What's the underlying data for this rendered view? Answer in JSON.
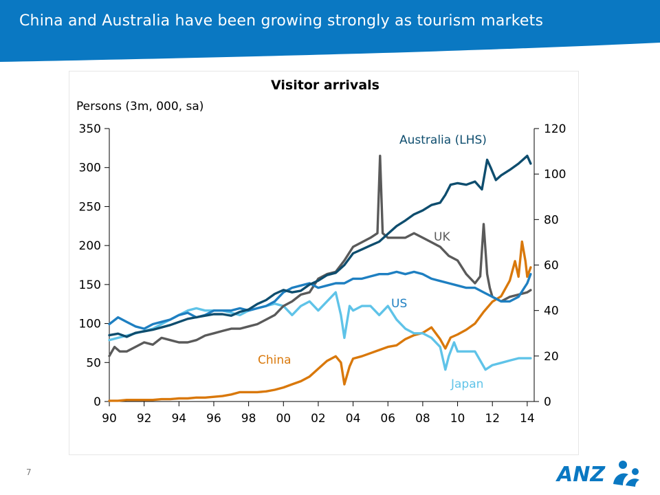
{
  "slide": {
    "title": "China and Australia have been growing strongly as tourism markets",
    "page_number": "7",
    "logo_text": "ANZ"
  },
  "colors": {
    "banner": "#0a78c2",
    "australia": "#0e4d6e",
    "uk": "#5a5a5a",
    "us": "#1e7fc1",
    "japan": "#5fc3e8",
    "china": "#d9780b"
  },
  "chart_data": {
    "type": "line",
    "title": "Visitor arrivals",
    "ylabel_left": "Persons (3m, 000, sa)",
    "x_tick_labels": [
      "90",
      "92",
      "94",
      "96",
      "98",
      "00",
      "02",
      "04",
      "06",
      "08",
      "10",
      "12",
      "14"
    ],
    "x_tick_years": [
      1990,
      1992,
      1994,
      1996,
      1998,
      2000,
      2002,
      2004,
      2006,
      2008,
      2010,
      2012,
      2014
    ],
    "xlim": [
      1990,
      2014.4
    ],
    "y_left": {
      "ticks": [
        "0",
        "50",
        "100",
        "150",
        "200",
        "250",
        "300",
        "350"
      ],
      "lim": [
        0,
        350
      ]
    },
    "y_right": {
      "ticks": [
        "0",
        "20",
        "40",
        "60",
        "80",
        "100",
        "120"
      ],
      "lim": [
        0,
        120
      ]
    },
    "series": [
      {
        "name": "Australia (LHS)",
        "axis": "left",
        "color_key": "australia",
        "x": [
          1990,
          1990.5,
          1991,
          1991.5,
          1992,
          1992.5,
          1993,
          1993.5,
          1994,
          1994.5,
          1995,
          1995.5,
          1996,
          1996.5,
          1997,
          1997.5,
          1998,
          1998.5,
          1999,
          1999.5,
          2000,
          2000.5,
          2001,
          2001.5,
          2002,
          2002.5,
          2003,
          2003.5,
          2004,
          2004.5,
          2005,
          2005.5,
          2006,
          2006.5,
          2007,
          2007.5,
          2008,
          2008.5,
          2009,
          2009.3,
          2009.6,
          2010,
          2010.5,
          2011,
          2011.4,
          2011.7,
          2011.9,
          2012.2,
          2012.5,
          2013,
          2013.5,
          2014,
          2014.2
        ],
        "y": [
          85,
          87,
          83,
          88,
          90,
          92,
          95,
          98,
          102,
          106,
          108,
          110,
          112,
          112,
          110,
          115,
          118,
          125,
          130,
          138,
          143,
          140,
          142,
          150,
          155,
          162,
          165,
          175,
          190,
          195,
          200,
          205,
          215,
          225,
          232,
          240,
          245,
          252,
          255,
          265,
          278,
          280,
          278,
          282,
          272,
          310,
          300,
          284,
          290,
          297,
          305,
          315,
          305
        ]
      },
      {
        "name": "UK",
        "axis": "right",
        "color_key": "uk",
        "x": [
          1990,
          1990.3,
          1990.6,
          1991,
          1991.5,
          1992,
          1992.5,
          1993,
          1993.5,
          1994,
          1994.5,
          1995,
          1995.5,
          1996,
          1996.5,
          1997,
          1997.5,
          1998,
          1998.5,
          1999,
          1999.5,
          2000,
          2000.5,
          2001,
          2001.5,
          2002,
          2002.5,
          2003,
          2003.5,
          2004,
          2004.5,
          2005,
          2005.4,
          2005.55,
          2005.7,
          2005.85,
          2006,
          2006.5,
          2007,
          2007.5,
          2008,
          2008.5,
          2009,
          2009.5,
          2010,
          2010.5,
          2011,
          2011.3,
          2011.5,
          2011.7,
          2011.85,
          2012,
          2012.5,
          2013,
          2013.5,
          2014,
          2014.2
        ],
        "y": [
          20,
          24,
          22,
          22,
          24,
          26,
          25,
          28,
          27,
          26,
          26,
          27,
          29,
          30,
          31,
          32,
          32,
          33,
          34,
          36,
          38,
          42,
          44,
          47,
          48,
          54,
          56,
          57,
          62,
          68,
          70,
          72,
          74,
          108,
          74,
          73,
          72,
          72,
          72,
          74,
          72,
          70,
          68,
          64,
          62,
          56,
          52,
          55,
          78,
          56,
          50,
          46,
          44,
          46,
          47,
          48,
          49
        ]
      },
      {
        "name": "US",
        "axis": "right",
        "color_key": "us",
        "x": [
          1990,
          1990.5,
          1991,
          1991.5,
          1992,
          1992.5,
          1993,
          1993.5,
          1994,
          1994.5,
          1995,
          1995.5,
          1996,
          1996.5,
          1997,
          1997.5,
          1998,
          1998.5,
          1999,
          1999.5,
          2000,
          2000.5,
          2001,
          2001.5,
          2002,
          2002.5,
          2003,
          2003.5,
          2004,
          2004.5,
          2005,
          2005.5,
          2006,
          2006.5,
          2007,
          2007.5,
          2008,
          2008.5,
          2009,
          2009.5,
          2010,
          2010.5,
          2011,
          2011.5,
          2012,
          2012.5,
          2013,
          2013.5,
          2014,
          2014.2
        ],
        "y": [
          34,
          37,
          35,
          33,
          32,
          34,
          35,
          36,
          38,
          39,
          37,
          38,
          40,
          40,
          40,
          41,
          40,
          41,
          42,
          44,
          48,
          50,
          51,
          52,
          50,
          51,
          52,
          52,
          54,
          54,
          55,
          56,
          56,
          57,
          56,
          57,
          56,
          54,
          53,
          52,
          51,
          50,
          50,
          48,
          46,
          44,
          44,
          46,
          52,
          56
        ]
      },
      {
        "name": "Japan",
        "axis": "right",
        "color_key": "japan",
        "x": [
          1990,
          1990.5,
          1991,
          1991.5,
          1992,
          1992.5,
          1993,
          1993.5,
          1994,
          1994.5,
          1995,
          1995.5,
          1996,
          1996.5,
          1997,
          1997.5,
          1998,
          1998.5,
          1999,
          1999.5,
          2000,
          2000.5,
          2001,
          2001.5,
          2002,
          2002.5,
          2003,
          2003.3,
          2003.5,
          2003.8,
          2004,
          2004.5,
          2005,
          2005.5,
          2006,
          2006.5,
          2007,
          2007.5,
          2008,
          2008.5,
          2009,
          2009.3,
          2009.5,
          2009.8,
          2010,
          2010.5,
          2011,
          2011.3,
          2011.6,
          2012,
          2012.5,
          2013,
          2013.5,
          2014,
          2014.2
        ],
        "y": [
          27,
          28,
          29,
          30,
          31,
          32,
          34,
          36,
          38,
          40,
          41,
          40,
          40,
          40,
          39,
          38,
          40,
          41,
          42,
          43,
          42,
          38,
          42,
          44,
          40,
          44,
          48,
          38,
          28,
          42,
          40,
          42,
          42,
          38,
          42,
          36,
          32,
          30,
          30,
          28,
          24,
          14,
          20,
          26,
          22,
          22,
          22,
          18,
          14,
          16,
          17,
          18,
          19,
          19,
          19
        ]
      },
      {
        "name": "China",
        "axis": "left",
        "color_key": "china",
        "x": [
          1990,
          1990.5,
          1991,
          1991.5,
          1992,
          1992.5,
          1993,
          1993.5,
          1994,
          1994.5,
          1995,
          1995.5,
          1996,
          1996.5,
          1997,
          1997.5,
          1998,
          1998.5,
          1999,
          1999.5,
          2000,
          2000.5,
          2001,
          2001.5,
          2002,
          2002.5,
          2003,
          2003.3,
          2003.5,
          2003.8,
          2004,
          2004.5,
          2005,
          2005.5,
          2006,
          2006.5,
          2007,
          2007.5,
          2008,
          2008.5,
          2009,
          2009.3,
          2009.6,
          2010,
          2010.5,
          2011,
          2011.5,
          2012,
          2012.5,
          2013,
          2013.3,
          2013.5,
          2013.7,
          2013.9,
          2014,
          2014.2
        ],
        "y": [
          1,
          1,
          2,
          2,
          2,
          2,
          3,
          3,
          4,
          4,
          5,
          5,
          6,
          7,
          9,
          12,
          12,
          12,
          13,
          15,
          18,
          22,
          26,
          32,
          42,
          52,
          58,
          50,
          22,
          45,
          55,
          58,
          62,
          66,
          70,
          72,
          80,
          85,
          88,
          95,
          80,
          68,
          82,
          86,
          92,
          100,
          115,
          128,
          135,
          155,
          180,
          160,
          205,
          180,
          160,
          172
        ]
      }
    ],
    "annotations": [
      {
        "text": "Australia (LHS)",
        "color_key": "australia"
      },
      {
        "text": "UK",
        "color_key": "uk"
      },
      {
        "text": "US",
        "color_key": "us"
      },
      {
        "text": "China",
        "color_key": "china"
      },
      {
        "text": "Japan",
        "color_key": "japan"
      }
    ],
    "grid": false,
    "legend": "none"
  }
}
